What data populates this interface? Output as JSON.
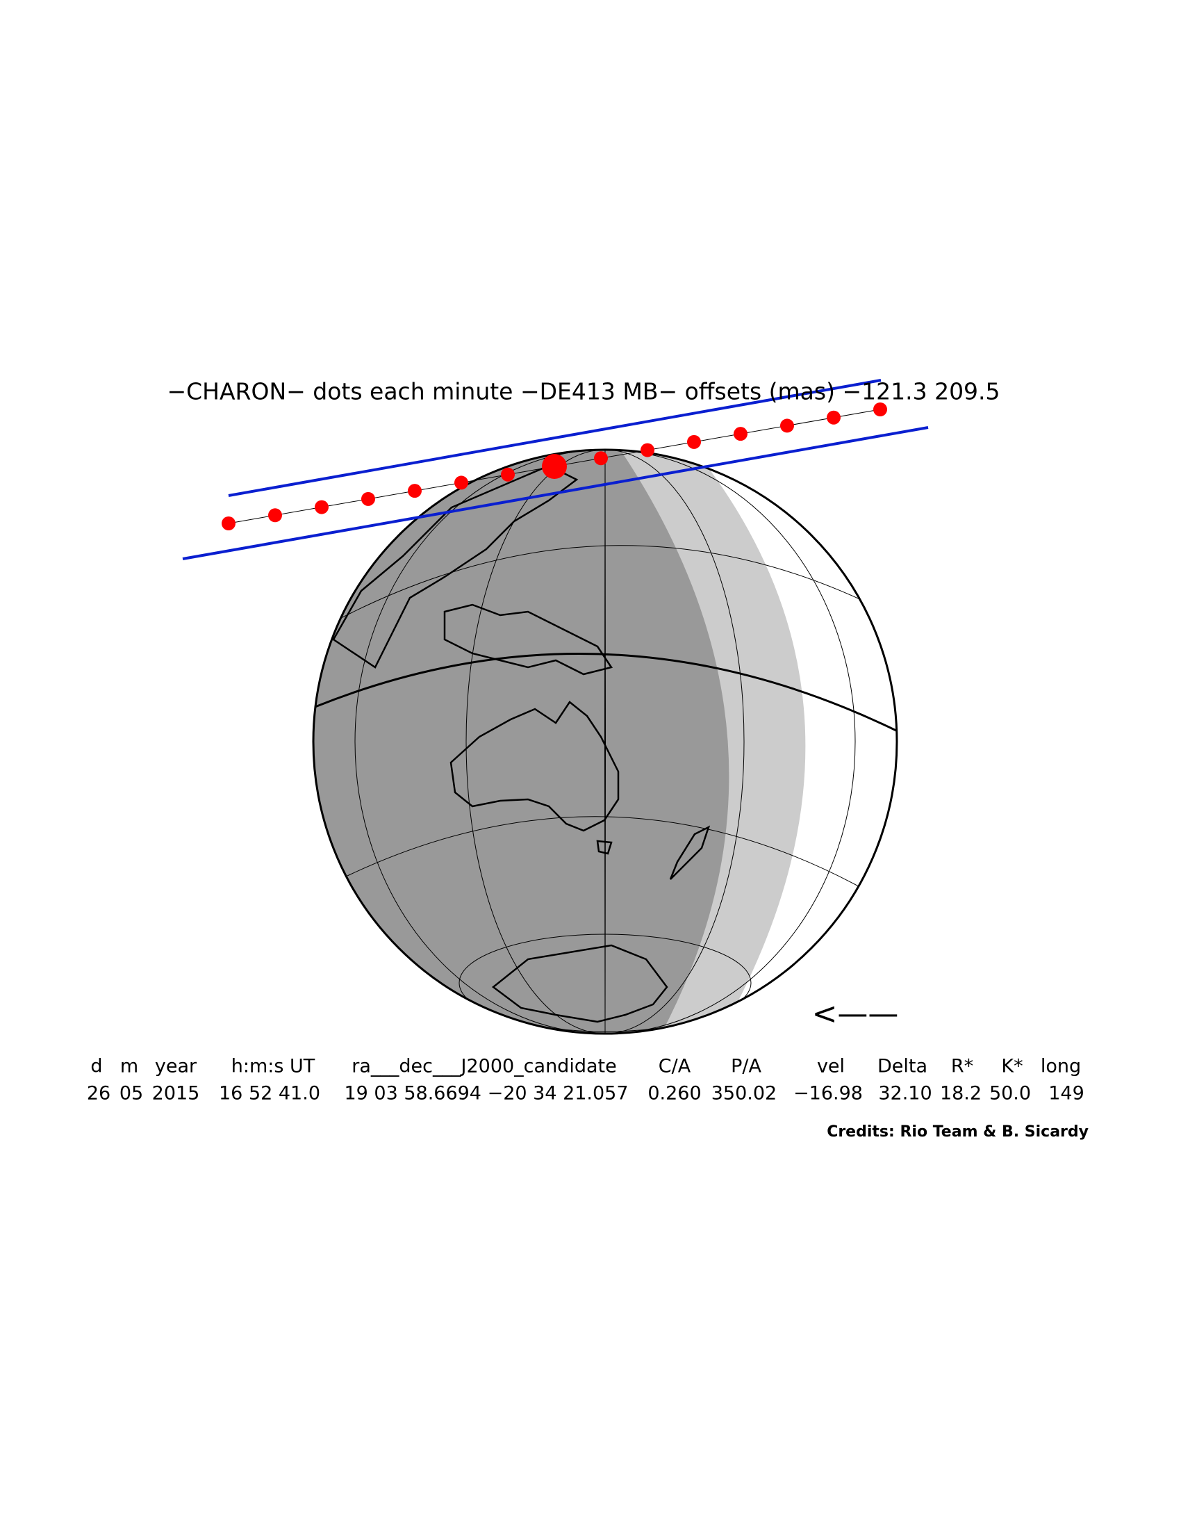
{
  "title": "−CHARON− dots each minute −DE413 MB− offsets (mas) −121.3   209.5",
  "direction": "<——",
  "table": {
    "header": [
      "d",
      "m",
      "year",
      "h:m:s UT",
      "ra___dec___J2000_candidate",
      "C/A",
      "P/A",
      "vel",
      "Delta",
      "R*",
      "K*",
      "long"
    ],
    "row": [
      "26",
      "05",
      "2015",
      "16 52 41.0",
      "19 03 58.6694 −20 34 21.057",
      "0.260",
      "350.02",
      "−16.98",
      "32.10",
      "18.2",
      "50.0",
      "149"
    ]
  },
  "credits": "Credits: Rio Team & B. Sicardy"
}
